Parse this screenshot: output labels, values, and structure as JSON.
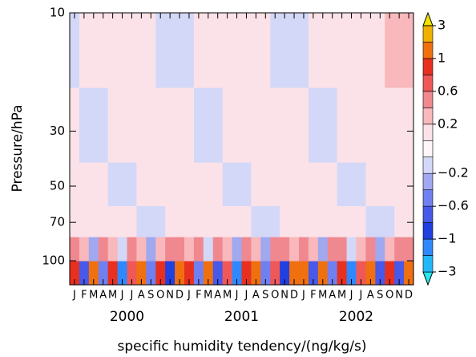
{
  "chart_data": {
    "type": "heatmap",
    "xlabel": "specific humidity tendency/(ng/kg/s)",
    "ylabel": "Pressure/hPa",
    "x": [
      "J",
      "F",
      "M",
      "A",
      "M",
      "J",
      "J",
      "A",
      "S",
      "O",
      "N",
      "D",
      "J",
      "F",
      "M",
      "A",
      "M",
      "J",
      "J",
      "A",
      "S",
      "O",
      "N",
      "D",
      "J",
      "F",
      "M",
      "A",
      "M",
      "J",
      "J",
      "A",
      "S",
      "O",
      "N",
      "D"
    ],
    "years": [
      "2000",
      "2001",
      "2002"
    ],
    "ylim": [
      125,
      10
    ],
    "log_y": true,
    "yticks": [
      10,
      30,
      50,
      70,
      100
    ],
    "y_edges": [
      125,
      100,
      80,
      60,
      40,
      20,
      10
    ],
    "z": [
      [
        0.8,
        -0.7,
        1.2,
        -0.5,
        0.9,
        -1.1,
        0.7,
        1.5,
        -0.6,
        0.8,
        -0.9,
        1.1,
        0.9,
        -0.6,
        1.3,
        -0.8,
        0.7,
        -1.2,
        0.9,
        1.4,
        -0.5,
        0.6,
        -1,
        1.2,
        1,
        -0.7,
        1.1,
        -0.6,
        0.8,
        -1.3,
        0.6,
        1.6,
        -0.7,
        0.9,
        -0.8,
        1
      ],
      [
        0.4,
        0.3,
        -0.3,
        0.5,
        0.3,
        -0.2,
        0.4,
        0.3,
        -0.3,
        0.3,
        0.5,
        0.4,
        0.3,
        0.4,
        -0.2,
        0.5,
        0.3,
        -0.3,
        0.4,
        0.3,
        -0.3,
        0.4,
        0.5,
        0.3,
        0.4,
        0.3,
        -0.3,
        0.4,
        0.5,
        -0.2,
        0.3,
        0.4,
        -0.3,
        0.3,
        0.4,
        0.5
      ],
      [
        0.15,
        0.15,
        0.15,
        0.15,
        0.15,
        0.15,
        0.15,
        -0.15,
        -0.15,
        -0.15,
        0.15,
        0.15,
        0.15,
        0.15,
        0.15,
        0.15,
        0.15,
        0.15,
        0.15,
        -0.15,
        -0.15,
        -0.15,
        0.15,
        0.15,
        0.15,
        0.15,
        0.15,
        0.15,
        0.15,
        0.15,
        0.15,
        -0.15,
        -0.15,
        -0.15,
        0.15,
        0.15
      ],
      [
        0.15,
        0.15,
        0.15,
        0.15,
        -0.15,
        -0.15,
        -0.15,
        0.15,
        0.15,
        0.15,
        0.15,
        0.15,
        0.15,
        0.15,
        0.15,
        0.15,
        -0.15,
        -0.15,
        -0.15,
        0.15,
        0.15,
        0.15,
        0.15,
        0.15,
        0.15,
        0.15,
        0.15,
        0.15,
        -0.15,
        -0.15,
        -0.15,
        0.15,
        0.15,
        0.15,
        0.15,
        0.15
      ],
      [
        0.15,
        -0.15,
        -0.15,
        -0.15,
        0.15,
        0.15,
        0.15,
        0.15,
        0.15,
        0.15,
        0.15,
        0.15,
        0.15,
        -0.15,
        -0.15,
        -0.15,
        0.15,
        0.15,
        0.15,
        0.15,
        0.15,
        0.15,
        0.15,
        0.15,
        0.15,
        -0.15,
        -0.15,
        -0.15,
        0.15,
        0.15,
        0.15,
        0.15,
        0.15,
        0.15,
        0.15,
        0.15
      ],
      [
        -0.15,
        0.15,
        0.15,
        0.15,
        0.15,
        0.15,
        0.15,
        0.15,
        0.15,
        -0.15,
        -0.15,
        -0.15,
        -0.15,
        0.15,
        0.15,
        0.15,
        0.15,
        0.15,
        0.15,
        0.15,
        0.15,
        -0.15,
        -0.15,
        -0.15,
        -0.15,
        0.15,
        0.15,
        0.15,
        0.15,
        0.15,
        0.15,
        0.15,
        0.15,
        0.25,
        0.25,
        0.25
      ]
    ],
    "levels": [
      -3,
      -2,
      -1,
      -0.8,
      -0.6,
      -0.4,
      -0.2,
      -0.1,
      0.1,
      0.2,
      0.4,
      0.6,
      0.8,
      1,
      2,
      3
    ],
    "colors": [
      "#20e8f0",
      "#20b8f8",
      "#3088ff",
      "#2040e0",
      "#4858e8",
      "#7080f0",
      "#a0a8f0",
      "#d4d8f8",
      "#fff6f8",
      "#fbe2e8",
      "#f8b8bc",
      "#f08890",
      "#f05858",
      "#e83020",
      "#f07010",
      "#f0b000",
      "#f0e400"
    ],
    "colorbar_ticks": [
      {
        "value": -3,
        "label": "−3"
      },
      {
        "value": -1,
        "label": "−1"
      },
      {
        "value": -0.6,
        "label": "−0.6"
      },
      {
        "value": -0.2,
        "label": "−0.2"
      },
      0.2,
      0.6,
      1,
      3
    ]
  }
}
